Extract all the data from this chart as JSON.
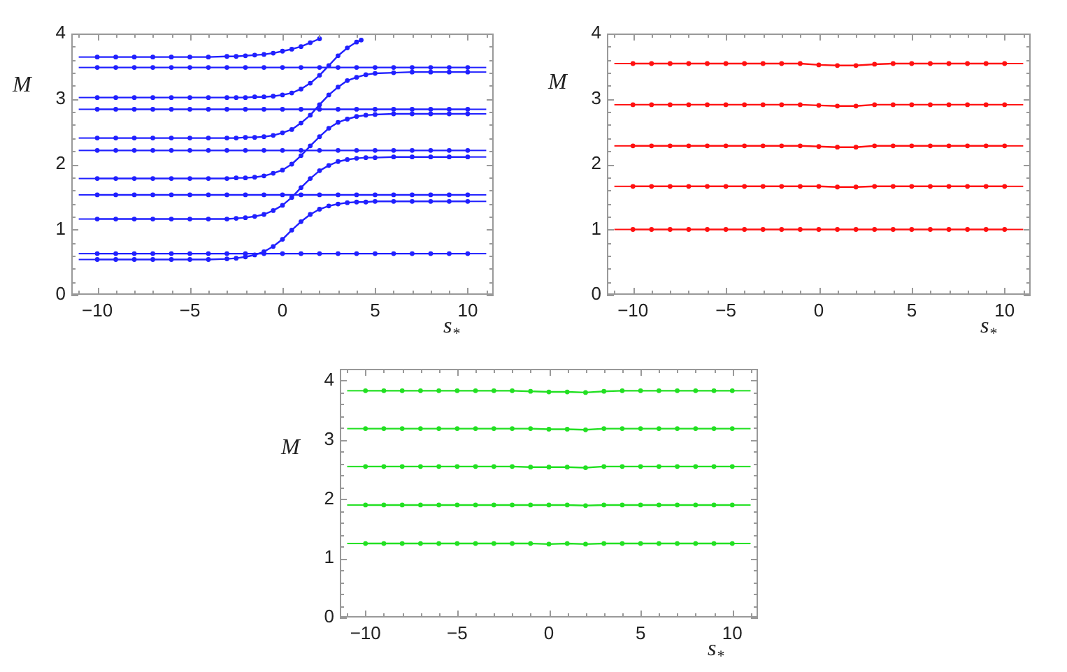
{
  "chart_data": [
    {
      "type": "line",
      "xlabel": "s$_{*}$",
      "ylabel": "M",
      "xlim": [
        -11.4,
        11.4
      ],
      "ylim": [
        0,
        4
      ],
      "xticks": [
        {
          "value": -11,
          "label": null
        },
        {
          "value": -10,
          "label": "−10"
        },
        {
          "value": -9,
          "label": null
        },
        {
          "value": -8,
          "label": null
        },
        {
          "value": -7,
          "label": null
        },
        {
          "value": -6,
          "label": null
        },
        {
          "value": -5,
          "label": "−5"
        },
        {
          "value": -4,
          "label": null
        },
        {
          "value": -3,
          "label": null
        },
        {
          "value": -2,
          "label": null
        },
        {
          "value": -1,
          "label": null
        },
        0,
        {
          "value": 1,
          "label": null
        },
        {
          "value": 2,
          "label": null
        },
        {
          "value": 3,
          "label": null
        },
        {
          "value": 4,
          "label": null
        },
        5,
        {
          "value": 6,
          "label": null
        },
        {
          "value": 7,
          "label": null
        },
        {
          "value": 8,
          "label": null
        },
        {
          "value": 9,
          "label": null
        },
        10,
        {
          "value": 11,
          "label": null
        }
      ],
      "yticks": [
        0,
        {
          "value": 0.2,
          "label": null
        },
        {
          "value": 0.4,
          "label": null
        },
        {
          "value": 0.6,
          "label": null
        },
        {
          "value": 0.8,
          "label": null
        },
        1,
        {
          "value": 1.2,
          "label": null
        },
        {
          "value": 1.4,
          "label": null
        },
        {
          "value": 1.6,
          "label": null
        },
        {
          "value": 1.8,
          "label": null
        },
        2,
        {
          "value": 2.2,
          "label": null
        },
        {
          "value": 2.4,
          "label": null
        },
        {
          "value": 2.6,
          "label": null
        },
        {
          "value": 2.8,
          "label": null
        },
        3,
        {
          "value": 3.2,
          "label": null
        },
        {
          "value": 3.4,
          "label": null
        },
        {
          "value": 3.6,
          "label": null
        },
        {
          "value": 3.8,
          "label": null
        },
        4
      ],
      "marker": "circle",
      "x": [
        -10,
        -9,
        -8,
        -7,
        -6,
        -5,
        -4,
        -3,
        -2.5,
        -2,
        -1.5,
        -1,
        -0.5,
        0,
        0.5,
        1,
        1.5,
        2,
        2.5,
        3,
        3.5,
        4,
        4.5,
        5,
        6,
        7,
        8,
        9,
        10
      ],
      "series": [
        {
          "color": "#2020ff",
          "values": [
            0.54,
            0.54,
            0.54,
            0.54,
            0.54,
            0.54,
            0.54,
            0.55,
            0.56,
            0.58,
            0.61,
            0.66,
            0.74,
            0.85,
            0.99,
            1.12,
            1.23,
            1.31,
            1.36,
            1.39,
            1.41,
            1.42,
            1.42,
            1.43,
            1.43,
            1.43,
            1.43,
            1.43,
            1.43
          ]
        },
        {
          "color": "#2020ff",
          "values": [
            1.16,
            1.16,
            1.16,
            1.16,
            1.16,
            1.16,
            1.16,
            1.16,
            1.17,
            1.18,
            1.2,
            1.23,
            1.29,
            1.37,
            1.49,
            1.64,
            1.78,
            1.9,
            1.98,
            2.04,
            2.07,
            2.09,
            2.1,
            2.1,
            2.11,
            2.11,
            2.11,
            2.11,
            2.11
          ]
        },
        {
          "color": "#2020ff",
          "values": [
            1.78,
            1.78,
            1.78,
            1.78,
            1.78,
            1.78,
            1.78,
            1.78,
            1.79,
            1.79,
            1.8,
            1.82,
            1.86,
            1.91,
            2.0,
            2.13,
            2.28,
            2.42,
            2.55,
            2.64,
            2.69,
            2.73,
            2.75,
            2.76,
            2.77,
            2.77,
            2.77,
            2.77,
            2.77
          ]
        },
        {
          "color": "#2020ff",
          "values": [
            2.4,
            2.4,
            2.4,
            2.4,
            2.4,
            2.4,
            2.4,
            2.4,
            2.4,
            2.41,
            2.41,
            2.42,
            2.44,
            2.48,
            2.53,
            2.63,
            2.75,
            2.91,
            3.06,
            3.18,
            3.28,
            3.33,
            3.37,
            3.39,
            3.4,
            3.41,
            3.41,
            3.41,
            3.41
          ]
        },
        {
          "color": "#2020ff",
          "x": [
            -10,
            -9,
            -8,
            -7,
            -6,
            -5,
            -4,
            -3,
            -2.5,
            -2,
            -1.5,
            -1,
            -0.5,
            0,
            0.5,
            1,
            1.5,
            2,
            2.5,
            3,
            3.5,
            4,
            4.25
          ],
          "values": [
            3.02,
            3.02,
            3.02,
            3.02,
            3.02,
            3.02,
            3.02,
            3.02,
            3.02,
            3.02,
            3.03,
            3.03,
            3.04,
            3.06,
            3.09,
            3.15,
            3.24,
            3.36,
            3.51,
            3.66,
            3.78,
            3.87,
            3.9
          ]
        },
        {
          "color": "#2020ff",
          "x": [
            -10,
            -9,
            -8,
            -7,
            -6,
            -5,
            -4,
            -3,
            -2.5,
            -2,
            -1.5,
            -1,
            -0.5,
            0,
            0.5,
            1,
            1.5,
            2
          ],
          "values": [
            3.64,
            3.64,
            3.64,
            3.64,
            3.64,
            3.64,
            3.64,
            3.65,
            3.65,
            3.66,
            3.67,
            3.68,
            3.7,
            3.73,
            3.76,
            3.8,
            3.86,
            3.92
          ]
        },
        {
          "color": "#2020ff",
          "x": [
            -10,
            -9,
            -8,
            -7,
            -6,
            -5,
            -4,
            -3,
            -2,
            -1,
            0,
            1,
            2,
            3,
            4,
            5,
            6,
            7,
            8,
            9,
            10
          ],
          "values": [
            0.63,
            0.63,
            0.63,
            0.63,
            0.63,
            0.63,
            0.63,
            0.63,
            0.63,
            0.63,
            0.63,
            0.63,
            0.63,
            0.63,
            0.63,
            0.63,
            0.63,
            0.63,
            0.63,
            0.63,
            0.63
          ]
        },
        {
          "color": "#2020ff",
          "x": [
            -10,
            -9,
            -8,
            -7,
            -6,
            -5,
            -4,
            -3,
            -2,
            -1,
            0,
            1,
            2,
            3,
            4,
            5,
            6,
            7,
            8,
            9,
            10
          ],
          "values": [
            1.53,
            1.53,
            1.53,
            1.53,
            1.53,
            1.53,
            1.53,
            1.53,
            1.53,
            1.53,
            1.53,
            1.53,
            1.53,
            1.53,
            1.53,
            1.53,
            1.53,
            1.53,
            1.53,
            1.53,
            1.53
          ]
        },
        {
          "color": "#2020ff",
          "x": [
            -10,
            -9,
            -8,
            -7,
            -6,
            -5,
            -4,
            -3,
            -2,
            -1,
            0,
            1,
            2,
            3,
            4,
            5,
            6,
            7,
            8,
            9,
            10
          ],
          "values": [
            2.21,
            2.21,
            2.21,
            2.21,
            2.21,
            2.21,
            2.21,
            2.21,
            2.21,
            2.21,
            2.21,
            2.21,
            2.21,
            2.21,
            2.21,
            2.21,
            2.21,
            2.21,
            2.21,
            2.21,
            2.21
          ]
        },
        {
          "color": "#2020ff",
          "x": [
            -10,
            -9,
            -8,
            -7,
            -6,
            -5,
            -4,
            -3,
            -2,
            -1,
            0,
            1,
            2,
            3,
            4,
            5,
            6,
            7,
            8,
            9,
            10
          ],
          "values": [
            2.84,
            2.84,
            2.84,
            2.84,
            2.84,
            2.84,
            2.84,
            2.84,
            2.84,
            2.84,
            2.84,
            2.84,
            2.84,
            2.84,
            2.84,
            2.84,
            2.84,
            2.84,
            2.84,
            2.84,
            2.84
          ]
        },
        {
          "color": "#2020ff",
          "x": [
            -10,
            -9,
            -8,
            -7,
            -6,
            -5,
            -4,
            -3,
            -2,
            -1,
            0,
            1,
            2,
            3,
            4,
            5,
            6,
            7,
            8,
            9,
            10
          ],
          "values": [
            3.48,
            3.48,
            3.48,
            3.48,
            3.48,
            3.48,
            3.48,
            3.48,
            3.48,
            3.48,
            3.48,
            3.48,
            3.48,
            3.48,
            3.48,
            3.48,
            3.48,
            3.48,
            3.48,
            3.48,
            3.48
          ]
        },
        {
          "color": "#2020ff",
          "marker": "none",
          "x": [
            -11,
            -10
          ],
          "values": [
            0.54,
            0.54
          ]
        },
        {
          "color": "#2020ff",
          "marker": "none",
          "x": [
            -11,
            -10
          ],
          "values": [
            1.16,
            1.16
          ]
        },
        {
          "color": "#2020ff",
          "marker": "none",
          "x": [
            -11,
            -10
          ],
          "values": [
            1.78,
            1.78
          ]
        },
        {
          "color": "#2020ff",
          "marker": "none",
          "x": [
            -11,
            -10
          ],
          "values": [
            2.4,
            2.4
          ]
        },
        {
          "color": "#2020ff",
          "marker": "none",
          "x": [
            -11,
            -10
          ],
          "values": [
            3.02,
            3.02
          ]
        },
        {
          "color": "#2020ff",
          "marker": "none",
          "x": [
            -11,
            -10
          ],
          "values": [
            3.64,
            3.64
          ]
        },
        {
          "color": "#2020ff",
          "marker": "none",
          "x": [
            10,
            11
          ],
          "values": [
            1.43,
            1.43
          ]
        },
        {
          "color": "#2020ff",
          "marker": "none",
          "x": [
            10,
            11
          ],
          "values": [
            2.11,
            2.11
          ]
        },
        {
          "color": "#2020ff",
          "marker": "none",
          "x": [
            10,
            11
          ],
          "values": [
            2.77,
            2.77
          ]
        },
        {
          "color": "#2020ff",
          "marker": "none",
          "x": [
            10,
            11
          ],
          "values": [
            3.41,
            3.41
          ]
        },
        {
          "color": "#2020ff",
          "marker": "none",
          "x": [
            -11,
            -10
          ],
          "values": [
            0.63,
            0.63
          ]
        },
        {
          "color": "#2020ff",
          "marker": "none",
          "x": [
            10,
            11
          ],
          "values": [
            0.63,
            0.63
          ]
        },
        {
          "color": "#2020ff",
          "marker": "none",
          "x": [
            -11,
            -10
          ],
          "values": [
            1.53,
            1.53
          ]
        },
        {
          "color": "#2020ff",
          "marker": "none",
          "x": [
            10,
            11
          ],
          "values": [
            1.53,
            1.53
          ]
        },
        {
          "color": "#2020ff",
          "marker": "none",
          "x": [
            -11,
            -10
          ],
          "values": [
            2.21,
            2.21
          ]
        },
        {
          "color": "#2020ff",
          "marker": "none",
          "x": [
            10,
            11
          ],
          "values": [
            2.21,
            2.21
          ]
        },
        {
          "color": "#2020ff",
          "marker": "none",
          "x": [
            -11,
            -10
          ],
          "values": [
            2.84,
            2.84
          ]
        },
        {
          "color": "#2020ff",
          "marker": "none",
          "x": [
            10,
            11
          ],
          "values": [
            2.84,
            2.84
          ]
        },
        {
          "color": "#2020ff",
          "marker": "none",
          "x": [
            -11,
            -10
          ],
          "values": [
            3.48,
            3.48
          ]
        },
        {
          "color": "#2020ff",
          "marker": "none",
          "x": [
            10,
            11
          ],
          "values": [
            3.48,
            3.48
          ]
        }
      ]
    },
    {
      "type": "line",
      "xlabel": "s$_{*}$",
      "ylabel": "M",
      "xlim": [
        -11.4,
        11.4
      ],
      "ylim": [
        0,
        4
      ],
      "xticks": [
        {
          "value": -11,
          "label": null
        },
        {
          "value": -10,
          "label": "−10"
        },
        {
          "value": -9,
          "label": null
        },
        {
          "value": -8,
          "label": null
        },
        {
          "value": -7,
          "label": null
        },
        {
          "value": -6,
          "label": null
        },
        {
          "value": -5,
          "label": "−5"
        },
        {
          "value": -4,
          "label": null
        },
        {
          "value": -3,
          "label": null
        },
        {
          "value": -2,
          "label": null
        },
        {
          "value": -1,
          "label": null
        },
        0,
        {
          "value": 1,
          "label": null
        },
        {
          "value": 2,
          "label": null
        },
        {
          "value": 3,
          "label": null
        },
        {
          "value": 4,
          "label": null
        },
        5,
        {
          "value": 6,
          "label": null
        },
        {
          "value": 7,
          "label": null
        },
        {
          "value": 8,
          "label": null
        },
        {
          "value": 9,
          "label": null
        },
        10,
        {
          "value": 11,
          "label": null
        }
      ],
      "yticks": [
        0,
        {
          "value": 0.2,
          "label": null
        },
        {
          "value": 0.4,
          "label": null
        },
        {
          "value": 0.6,
          "label": null
        },
        {
          "value": 0.8,
          "label": null
        },
        1,
        {
          "value": 1.2,
          "label": null
        },
        {
          "value": 1.4,
          "label": null
        },
        {
          "value": 1.6,
          "label": null
        },
        {
          "value": 1.8,
          "label": null
        },
        2,
        {
          "value": 2.2,
          "label": null
        },
        {
          "value": 2.4,
          "label": null
        },
        {
          "value": 2.6,
          "label": null
        },
        {
          "value": 2.8,
          "label": null
        },
        3,
        {
          "value": 3.2,
          "label": null
        },
        {
          "value": 3.4,
          "label": null
        },
        {
          "value": 3.6,
          "label": null
        },
        {
          "value": 3.8,
          "label": null
        },
        4
      ],
      "marker": "circle",
      "x": [
        -10,
        -9,
        -8,
        -7,
        -6,
        -5,
        -4,
        -3,
        -2,
        -1,
        0,
        1,
        2,
        3,
        4,
        5,
        6,
        7,
        8,
        9,
        10
      ],
      "series": [
        {
          "color": "#ff1010",
          "values": [
            1.0,
            1.0,
            1.0,
            1.0,
            1.0,
            1.0,
            1.0,
            1.0,
            1.0,
            1.0,
            1.0,
            1.0,
            1.0,
            1.0,
            1.0,
            1.0,
            1.0,
            1.0,
            1.0,
            1.0,
            1.0
          ]
        },
        {
          "color": "#ff1010",
          "values": [
            1.66,
            1.66,
            1.66,
            1.66,
            1.66,
            1.66,
            1.66,
            1.66,
            1.66,
            1.66,
            1.66,
            1.65,
            1.65,
            1.66,
            1.66,
            1.66,
            1.66,
            1.66,
            1.66,
            1.66,
            1.66
          ]
        },
        {
          "color": "#ff1010",
          "values": [
            2.28,
            2.28,
            2.28,
            2.28,
            2.28,
            2.28,
            2.28,
            2.28,
            2.28,
            2.28,
            2.27,
            2.26,
            2.26,
            2.28,
            2.28,
            2.28,
            2.28,
            2.28,
            2.28,
            2.28,
            2.28
          ]
        },
        {
          "color": "#ff1010",
          "values": [
            2.91,
            2.91,
            2.91,
            2.91,
            2.91,
            2.91,
            2.91,
            2.91,
            2.91,
            2.91,
            2.9,
            2.89,
            2.89,
            2.91,
            2.91,
            2.91,
            2.91,
            2.91,
            2.91,
            2.91,
            2.91
          ]
        },
        {
          "color": "#ff1010",
          "values": [
            3.54,
            3.54,
            3.54,
            3.54,
            3.54,
            3.54,
            3.54,
            3.54,
            3.54,
            3.54,
            3.52,
            3.51,
            3.51,
            3.53,
            3.54,
            3.54,
            3.54,
            3.54,
            3.54,
            3.54,
            3.54
          ]
        },
        {
          "color": "#ff1010",
          "marker": "none",
          "x": [
            -11,
            -10
          ],
          "values": [
            1.0,
            1.0
          ]
        },
        {
          "color": "#ff1010",
          "marker": "none",
          "x": [
            10,
            11
          ],
          "values": [
            1.0,
            1.0
          ]
        },
        {
          "color": "#ff1010",
          "marker": "none",
          "x": [
            -11,
            -10
          ],
          "values": [
            1.66,
            1.66
          ]
        },
        {
          "color": "#ff1010",
          "marker": "none",
          "x": [
            10,
            11
          ],
          "values": [
            1.66,
            1.66
          ]
        },
        {
          "color": "#ff1010",
          "marker": "none",
          "x": [
            -11,
            -10
          ],
          "values": [
            2.28,
            2.28
          ]
        },
        {
          "color": "#ff1010",
          "marker": "none",
          "x": [
            10,
            11
          ],
          "values": [
            2.28,
            2.28
          ]
        },
        {
          "color": "#ff1010",
          "marker": "none",
          "x": [
            -11,
            -10
          ],
          "values": [
            2.91,
            2.91
          ]
        },
        {
          "color": "#ff1010",
          "marker": "none",
          "x": [
            10,
            11
          ],
          "values": [
            2.91,
            2.91
          ]
        },
        {
          "color": "#ff1010",
          "marker": "none",
          "x": [
            -11,
            -10
          ],
          "values": [
            3.54,
            3.54
          ]
        },
        {
          "color": "#ff1010",
          "marker": "none",
          "x": [
            10,
            11
          ],
          "values": [
            3.54,
            3.54
          ]
        }
      ]
    },
    {
      "type": "line",
      "xlabel": "s$_{*}$",
      "ylabel": "M",
      "xlim": [
        -11.4,
        11.4
      ],
      "ylim": [
        0,
        4.2
      ],
      "xticks": [
        {
          "value": -11,
          "label": null
        },
        {
          "value": -10,
          "label": "−10"
        },
        {
          "value": -9,
          "label": null
        },
        {
          "value": -8,
          "label": null
        },
        {
          "value": -7,
          "label": null
        },
        {
          "value": -6,
          "label": null
        },
        {
          "value": -5,
          "label": "−5"
        },
        {
          "value": -4,
          "label": null
        },
        {
          "value": -3,
          "label": null
        },
        {
          "value": -2,
          "label": null
        },
        {
          "value": -1,
          "label": null
        },
        0,
        {
          "value": 1,
          "label": null
        },
        {
          "value": 2,
          "label": null
        },
        {
          "value": 3,
          "label": null
        },
        {
          "value": 4,
          "label": null
        },
        5,
        {
          "value": 6,
          "label": null
        },
        {
          "value": 7,
          "label": null
        },
        {
          "value": 8,
          "label": null
        },
        {
          "value": 9,
          "label": null
        },
        10,
        {
          "value": 11,
          "label": null
        }
      ],
      "yticks": [
        0,
        {
          "value": 0.2,
          "label": null
        },
        {
          "value": 0.4,
          "label": null
        },
        {
          "value": 0.6,
          "label": null
        },
        {
          "value": 0.8,
          "label": null
        },
        1,
        {
          "value": 1.2,
          "label": null
        },
        {
          "value": 1.4,
          "label": null
        },
        {
          "value": 1.6,
          "label": null
        },
        {
          "value": 1.8,
          "label": null
        },
        2,
        {
          "value": 2.2,
          "label": null
        },
        {
          "value": 2.4,
          "label": null
        },
        {
          "value": 2.6,
          "label": null
        },
        {
          "value": 2.8,
          "label": null
        },
        3,
        {
          "value": 3.2,
          "label": null
        },
        {
          "value": 3.4,
          "label": null
        },
        {
          "value": 3.6,
          "label": null
        },
        {
          "value": 3.8,
          "label": null
        },
        4
      ],
      "marker": "circle",
      "x": [
        -10,
        -9,
        -8,
        -7,
        -6,
        -5,
        -4,
        -3,
        -2,
        -1,
        0,
        1,
        2,
        3,
        4,
        5,
        6,
        7,
        8,
        9,
        10
      ],
      "series": [
        {
          "color": "#22e022",
          "values": [
            1.25,
            1.25,
            1.25,
            1.25,
            1.25,
            1.25,
            1.25,
            1.25,
            1.25,
            1.25,
            1.24,
            1.25,
            1.24,
            1.25,
            1.25,
            1.25,
            1.25,
            1.25,
            1.25,
            1.25,
            1.25
          ]
        },
        {
          "color": "#22e022",
          "values": [
            1.9,
            1.9,
            1.9,
            1.9,
            1.9,
            1.9,
            1.9,
            1.9,
            1.9,
            1.9,
            1.9,
            1.9,
            1.89,
            1.9,
            1.9,
            1.9,
            1.9,
            1.9,
            1.9,
            1.9,
            1.9
          ]
        },
        {
          "color": "#22e022",
          "values": [
            2.55,
            2.55,
            2.55,
            2.55,
            2.55,
            2.55,
            2.55,
            2.55,
            2.55,
            2.54,
            2.54,
            2.54,
            2.53,
            2.55,
            2.55,
            2.55,
            2.55,
            2.55,
            2.55,
            2.55,
            2.55
          ]
        },
        {
          "color": "#22e022",
          "values": [
            3.19,
            3.19,
            3.19,
            3.19,
            3.19,
            3.19,
            3.19,
            3.19,
            3.19,
            3.19,
            3.18,
            3.18,
            3.17,
            3.19,
            3.19,
            3.19,
            3.19,
            3.19,
            3.19,
            3.19,
            3.19
          ]
        },
        {
          "color": "#22e022",
          "values": [
            3.83,
            3.83,
            3.83,
            3.83,
            3.83,
            3.83,
            3.83,
            3.83,
            3.83,
            3.82,
            3.81,
            3.81,
            3.8,
            3.82,
            3.83,
            3.83,
            3.83,
            3.83,
            3.83,
            3.83,
            3.83
          ]
        },
        {
          "color": "#22e022",
          "marker": "none",
          "x": [
            -11,
            -10
          ],
          "values": [
            1.25,
            1.25
          ]
        },
        {
          "color": "#22e022",
          "marker": "none",
          "x": [
            10,
            11
          ],
          "values": [
            1.25,
            1.25
          ]
        },
        {
          "color": "#22e022",
          "marker": "none",
          "x": [
            -11,
            -10
          ],
          "values": [
            1.9,
            1.9
          ]
        },
        {
          "color": "#22e022",
          "marker": "none",
          "x": [
            10,
            11
          ],
          "values": [
            1.9,
            1.9
          ]
        },
        {
          "color": "#22e022",
          "marker": "none",
          "x": [
            -11,
            -10
          ],
          "values": [
            2.55,
            2.55
          ]
        },
        {
          "color": "#22e022",
          "marker": "none",
          "x": [
            10,
            11
          ],
          "values": [
            2.55,
            2.55
          ]
        },
        {
          "color": "#22e022",
          "marker": "none",
          "x": [
            -11,
            -10
          ],
          "values": [
            3.19,
            3.19
          ]
        },
        {
          "color": "#22e022",
          "marker": "none",
          "x": [
            10,
            11
          ],
          "values": [
            3.19,
            3.19
          ]
        },
        {
          "color": "#22e022",
          "marker": "none",
          "x": [
            -11,
            -10
          ],
          "values": [
            3.83,
            3.83
          ]
        },
        {
          "color": "#22e022",
          "marker": "none",
          "x": [
            10,
            11
          ],
          "values": [
            3.83,
            3.83
          ]
        }
      ]
    }
  ]
}
